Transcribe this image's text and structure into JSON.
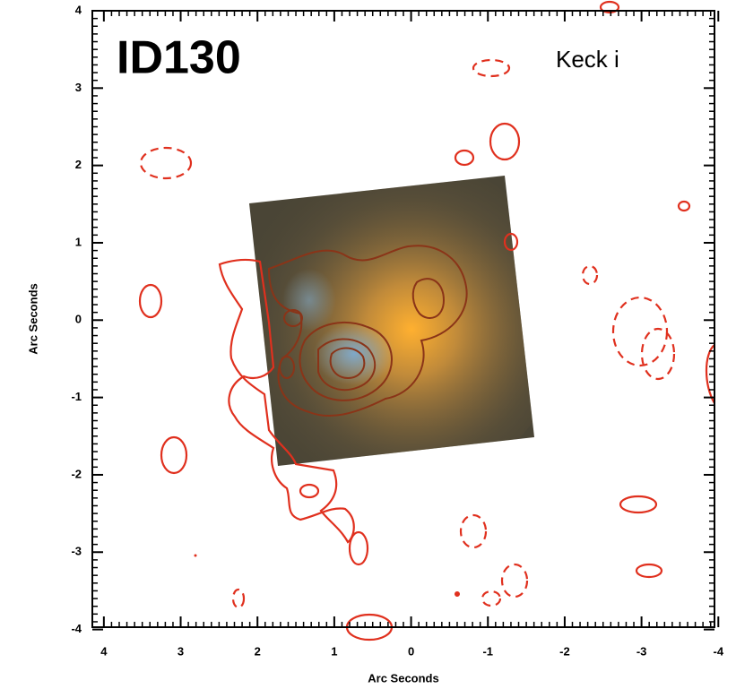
{
  "chart_data": {
    "type": "image",
    "title": "ID130",
    "annotations": [
      "Keck i"
    ],
    "x_label": "Arc Seconds",
    "y_label": "Arc Seconds",
    "xlim": [
      4.15,
      -3.95
    ],
    "ylim": [
      -3.97,
      4.0
    ],
    "xticks": [
      4,
      3,
      2,
      1,
      0,
      -1,
      -2,
      -3,
      -4
    ],
    "yticks": [
      -4,
      -3,
      -2,
      -1,
      0,
      1,
      2,
      3,
      4
    ]
  }
}
